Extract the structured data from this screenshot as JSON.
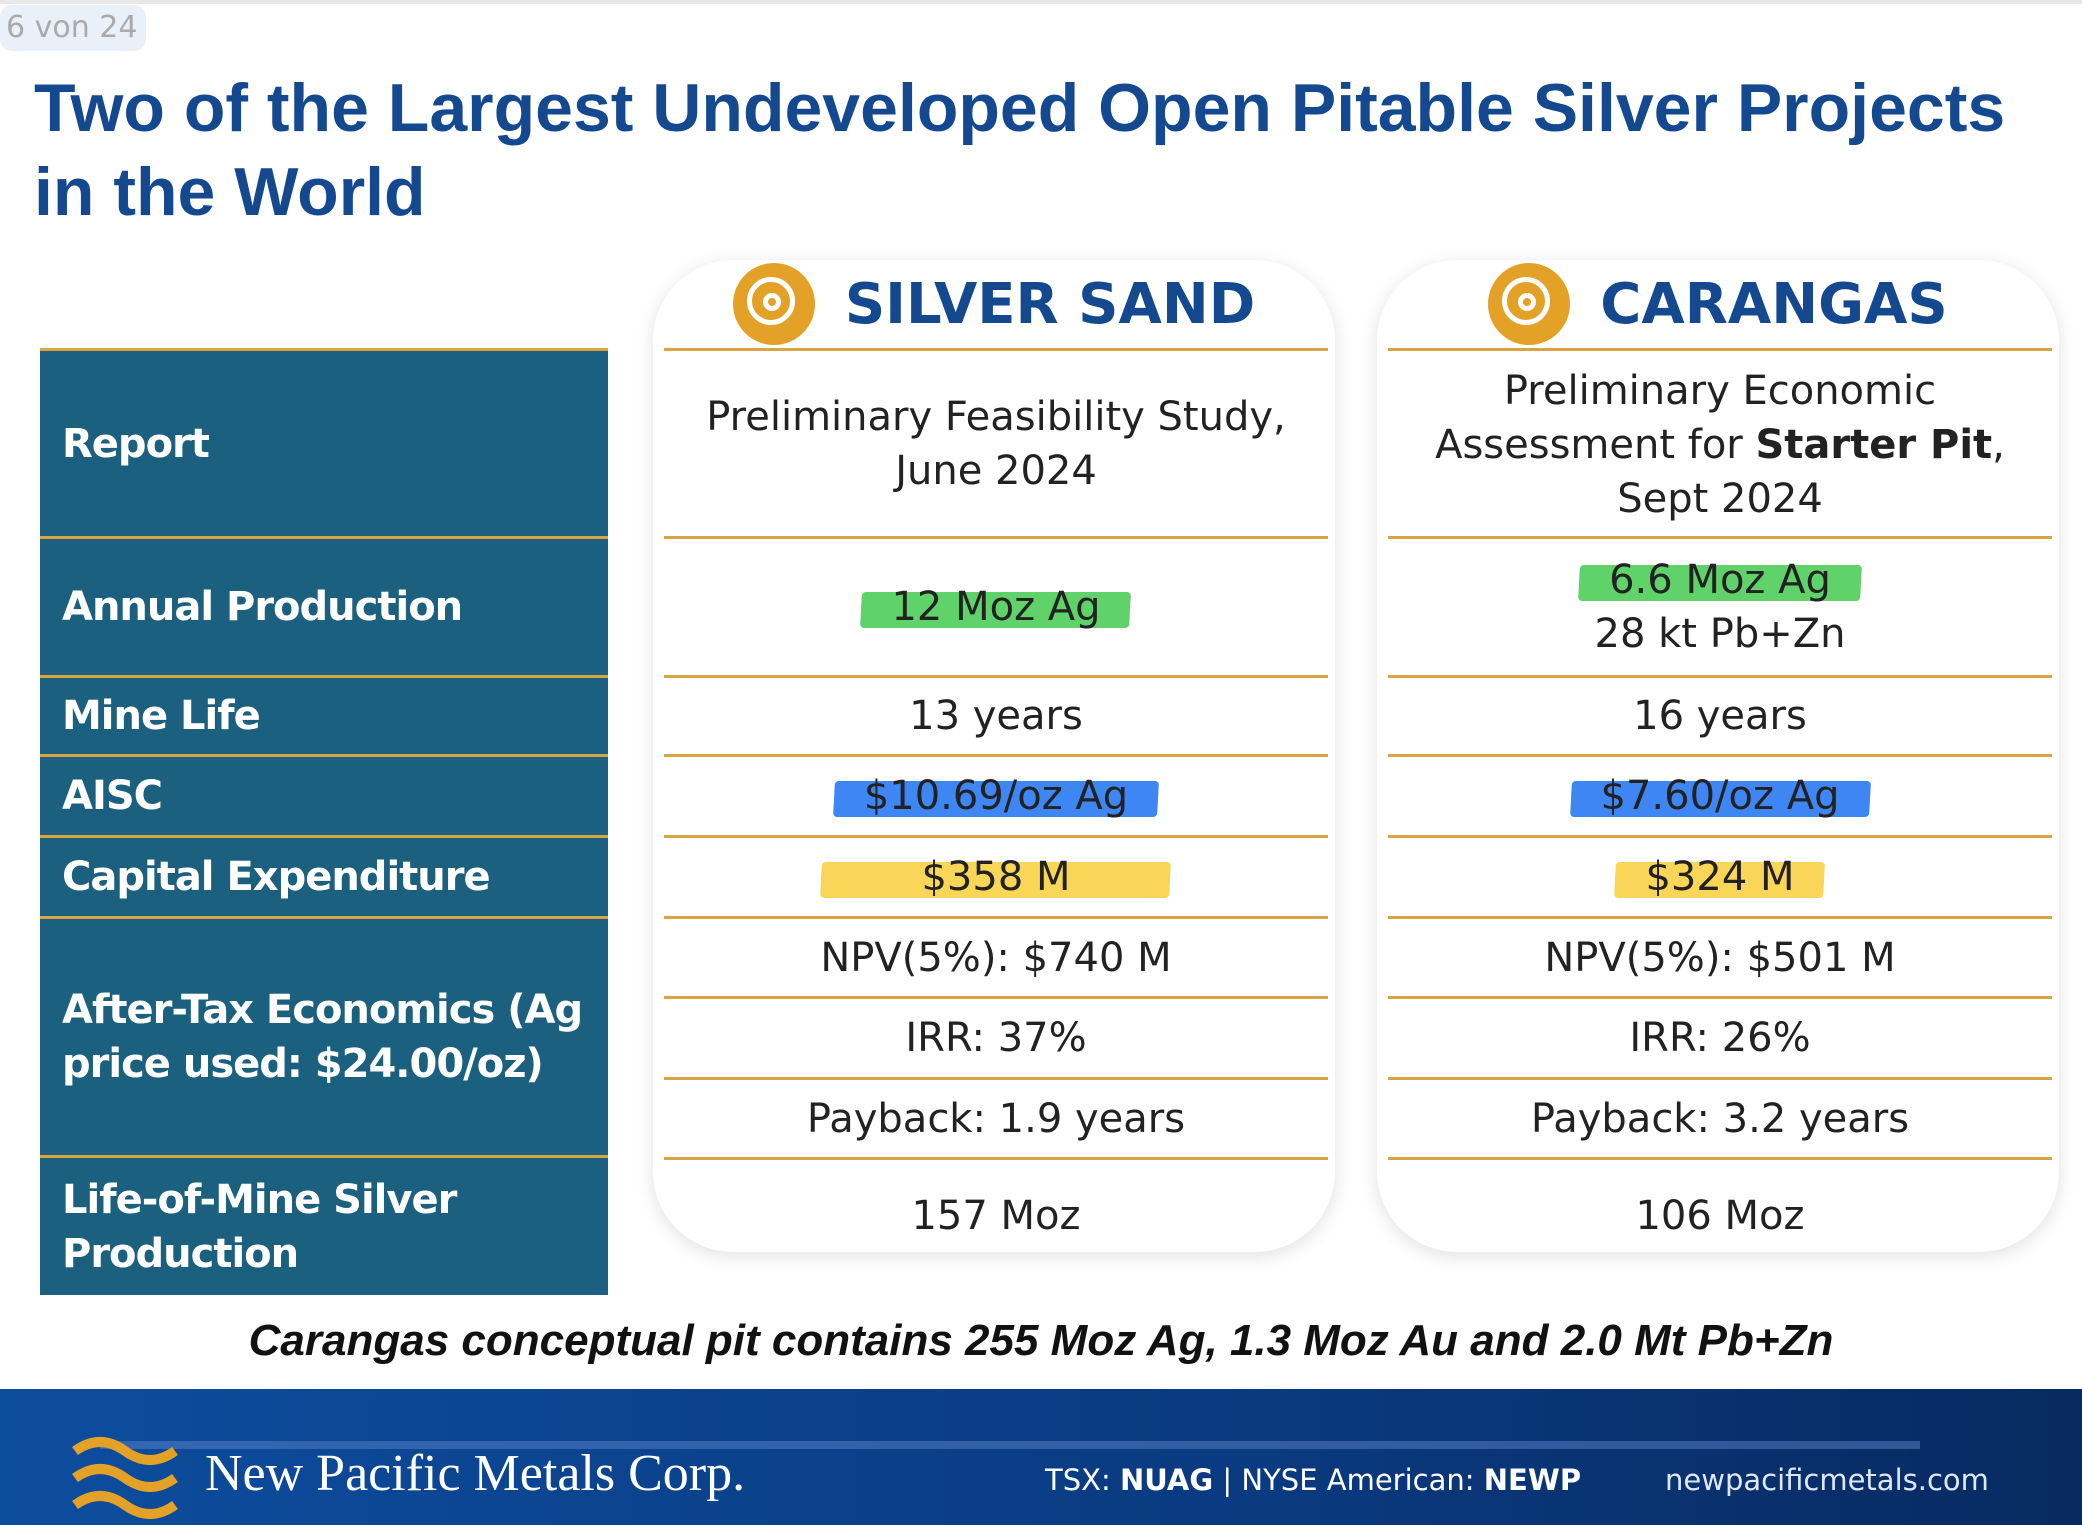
{
  "page_indicator": "6 von 24",
  "title": "Two of the Largest Undeveloped Open Pitable Silver Projects in the World",
  "rows": [
    "Report",
    "Annual Production",
    "Mine Life",
    "AISC",
    "Capital Expenditure",
    "After-Tax Economics (Ag price used: $24.00/oz)",
    "Life-of-Mine Silver Production"
  ],
  "projects": [
    {
      "name": "SILVER SAND",
      "icon": "target-icon",
      "report": "Preliminary Feasibility Study, June 2024",
      "production": "12 Moz Ag",
      "mine_life": "13 years",
      "aisc": "$10.69/oz Ag",
      "capex": "$358 M",
      "npv": "NPV(5%): $740 M",
      "irr": "IRR: 37%",
      "payback": "Payback: 1.9 years",
      "lom": "157 Moz"
    },
    {
      "name": "CARANGAS",
      "icon": "target-icon",
      "report_a": "Preliminary Economic Assessment for ",
      "report_b": "Starter Pit",
      "report_c": ", Sept 2024",
      "production": "6.6 Moz Ag",
      "production2": "28 kt Pb+Zn",
      "mine_life": "16 years",
      "aisc": "$7.60/oz Ag",
      "capex": "$324 M",
      "npv": "NPV(5%): $501 M",
      "irr": "IRR: 26%",
      "payback": "Payback: 3.2 years",
      "lom": "106 Moz"
    }
  ],
  "highlight_colors": {
    "production": "#5fd36a",
    "aisc": "#3f86f5",
    "capex": "#f9d558"
  },
  "note": "Carangas conceptual pit contains 255 Moz Ag, 1.3 Moz Au and 2.0 Mt Pb+Zn",
  "footer": {
    "company": "New Pacific Metals Corp.",
    "tsx_label": "TSX: ",
    "tsx": "NUAG",
    "sep": " | ",
    "nyse_label": "NYSE American: ",
    "nyse": "NEWP",
    "website": "newpacificmetals.com"
  }
}
